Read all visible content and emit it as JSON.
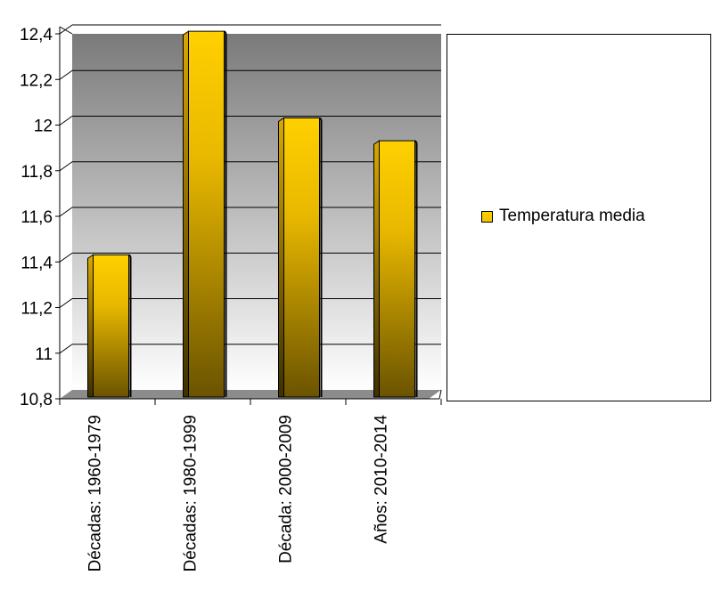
{
  "chart_data": {
    "type": "bar",
    "categories": [
      "Décadas: 1960-1979",
      "Décadas: 1980-1999",
      "Década: 2000-2009",
      "Años: 2010-2014"
    ],
    "series": [
      {
        "name": "Temperatura media",
        "values": [
          11.4,
          12.38,
          12.0,
          11.9
        ]
      }
    ],
    "title": "",
    "xlabel": "",
    "ylabel": "",
    "ylim": [
      10.8,
      12.4
    ],
    "yticks": [
      "10,8",
      "11",
      "11,2",
      "11,4",
      "11,6",
      "11,8",
      "12",
      "12,2",
      "12,4"
    ],
    "grid": true,
    "legend_position": "right",
    "colors": {
      "bar_top": "#ffd000",
      "bar_bottom": "#6b5300",
      "wall_top": "#7a7a7a",
      "wall_bottom": "#ffffff",
      "floor": "#8c8c8c"
    }
  },
  "legend": {
    "label": "Temperatura media"
  }
}
